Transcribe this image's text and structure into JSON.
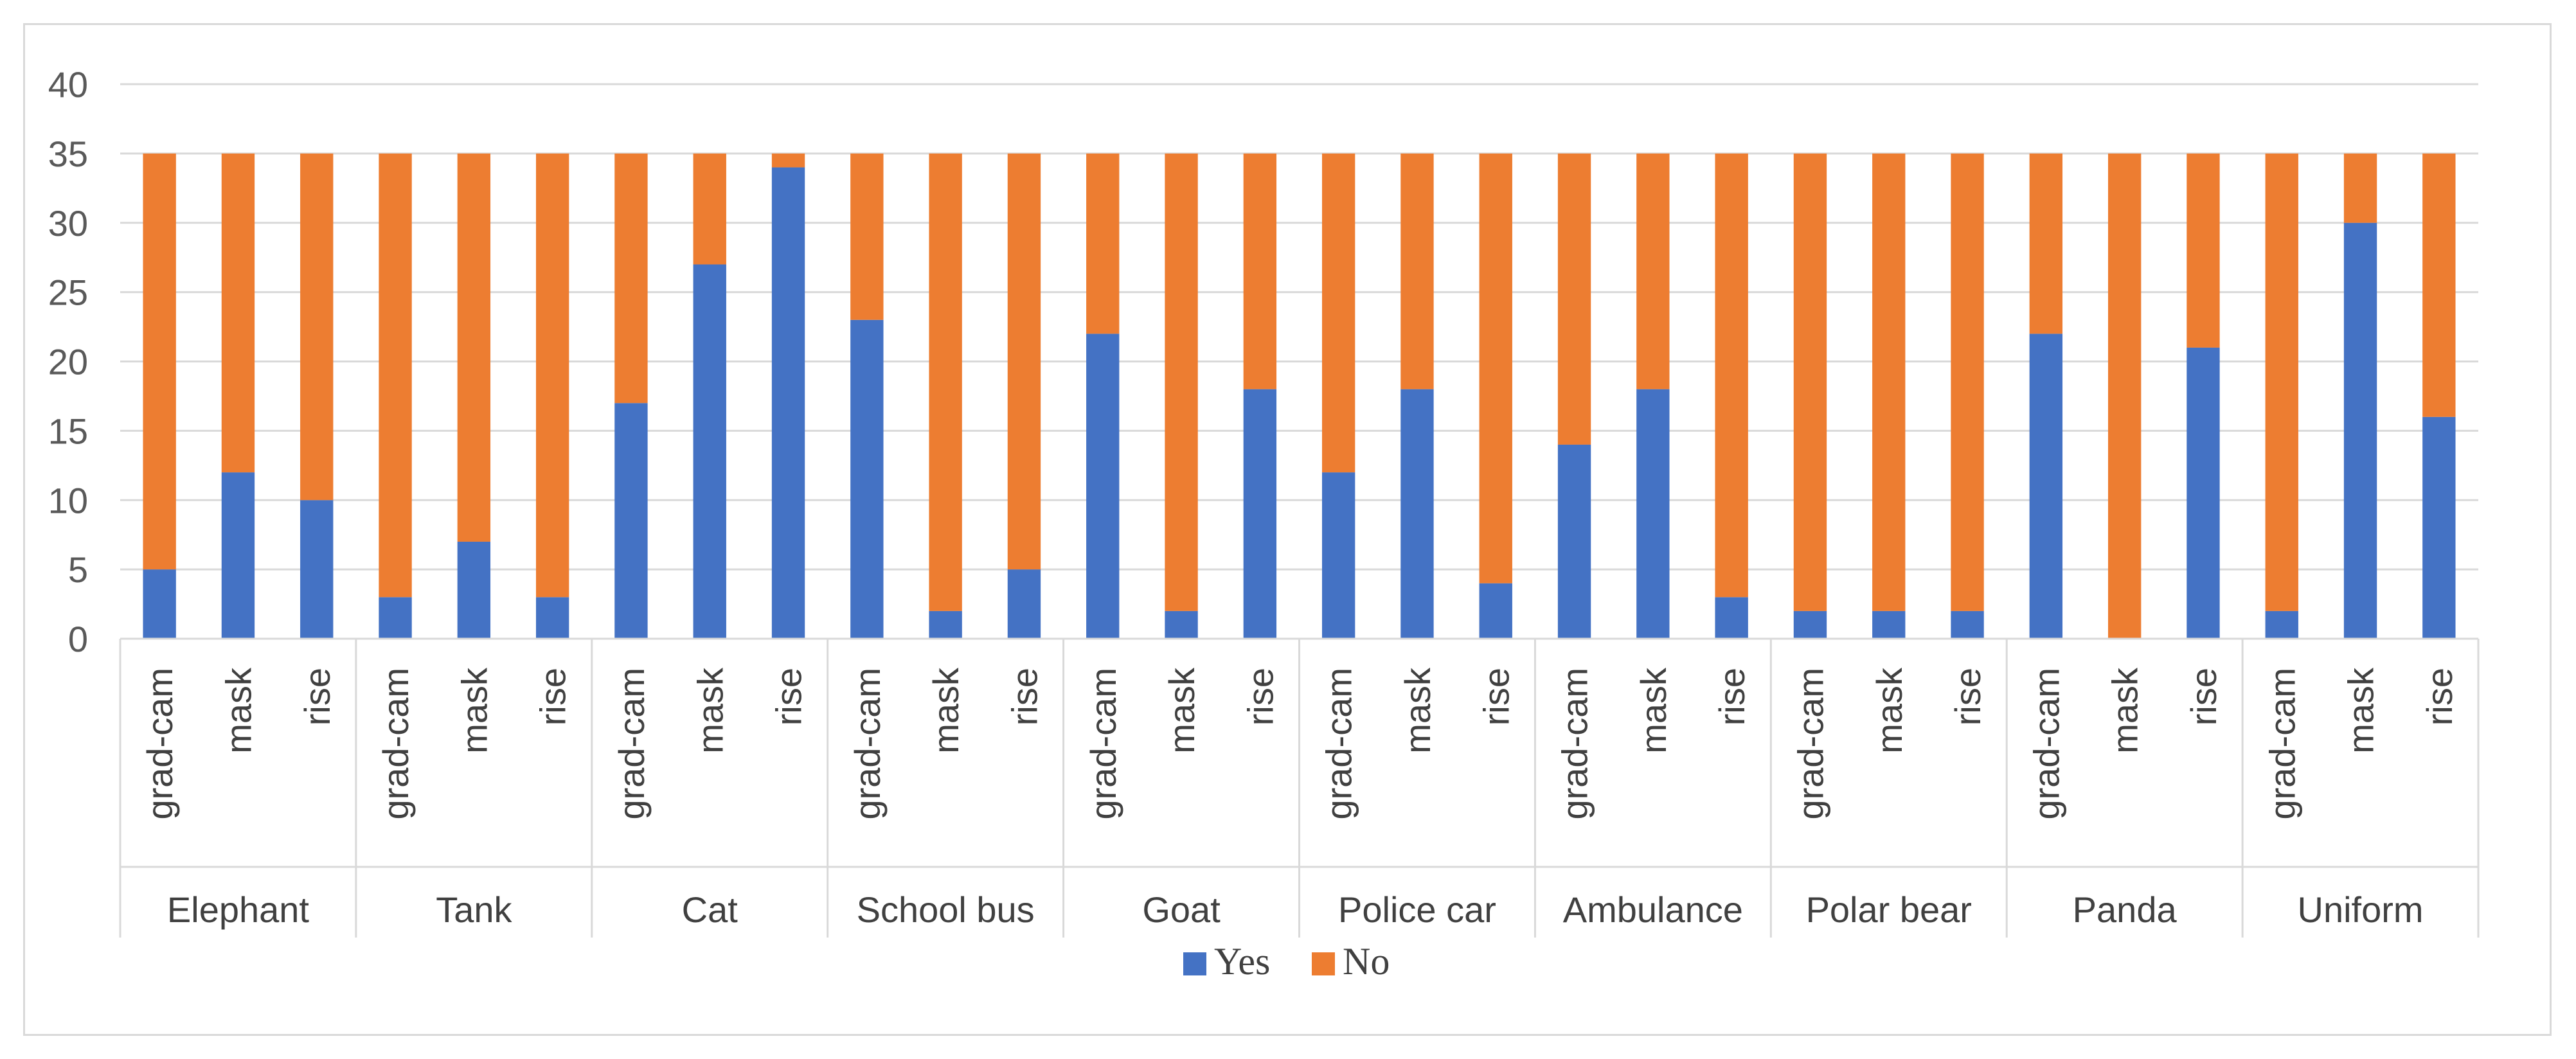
{
  "chart_data": {
    "type": "bar",
    "stacked": true,
    "title": "",
    "xlabel": "",
    "ylabel": "",
    "ylim": [
      0,
      40
    ],
    "yticks": [
      0,
      5,
      10,
      15,
      20,
      25,
      30,
      35,
      40
    ],
    "grid": true,
    "legend_position": "bottom",
    "groups": [
      "Elephant",
      "Tank",
      "Cat",
      "School bus",
      "Goat",
      "Police car",
      "Ambulance",
      "Polar bear",
      "Panda",
      "Uniform"
    ],
    "methods": [
      "grad-cam",
      "mask",
      "rise"
    ],
    "series": [
      {
        "name": "Yes",
        "color": "#4472C4",
        "values": [
          5,
          12,
          10,
          3,
          7,
          3,
          17,
          27,
          34,
          23,
          2,
          5,
          22,
          2,
          18,
          12,
          18,
          4,
          14,
          18,
          3,
          2,
          2,
          2,
          22,
          0,
          21,
          2,
          30,
          16
        ]
      },
      {
        "name": "No",
        "color": "#ED7D31",
        "values": [
          30,
          23,
          25,
          32,
          28,
          32,
          18,
          8,
          1,
          12,
          33,
          30,
          13,
          33,
          17,
          23,
          17,
          31,
          21,
          17,
          32,
          33,
          33,
          33,
          13,
          35,
          14,
          33,
          5,
          19
        ]
      }
    ]
  }
}
